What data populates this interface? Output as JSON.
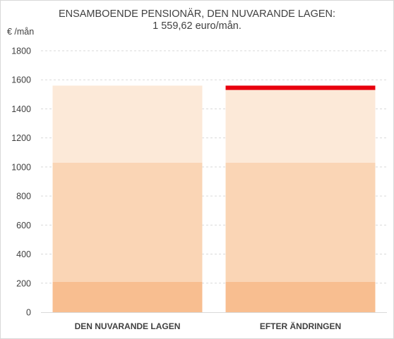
{
  "chart_data": {
    "type": "bar",
    "stacked": true,
    "title": "ENSAMBOENDE PENSIONÄR, DEN NUVARANDE LAGEN:",
    "subtitle": "1 559,62 euro/mån.",
    "ylabel": "€ /mån",
    "xlabel": "",
    "ylim": [
      0,
      1800
    ],
    "yticks": [
      0,
      200,
      400,
      600,
      800,
      1000,
      1200,
      1400,
      1600,
      1800
    ],
    "grid": true,
    "legend": "none",
    "categories": [
      "DEN NUVARANDE LAGEN",
      "EFTER ÄNDRINGEN"
    ],
    "series": [
      {
        "color": "#f8be90",
        "values": [
          210,
          210
        ]
      },
      {
        "color": "#fad5b5",
        "values": [
          820,
          820
        ]
      },
      {
        "color": "#fce9d8",
        "values": [
          530,
          500
        ]
      },
      {
        "color": "#e8000d",
        "values": [
          0,
          30
        ]
      }
    ]
  }
}
